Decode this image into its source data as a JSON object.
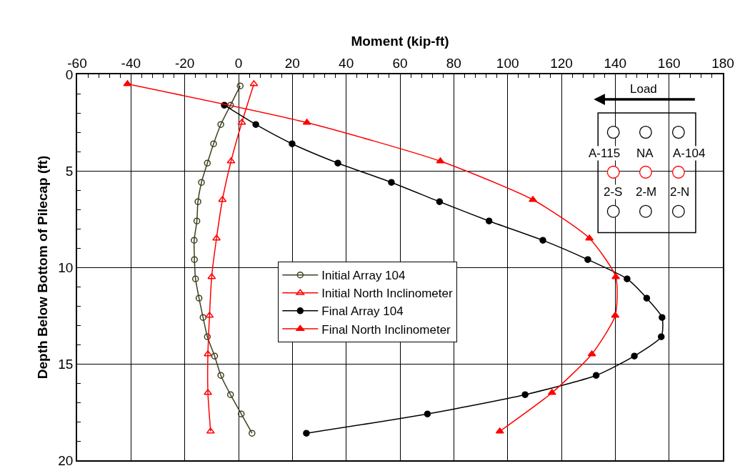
{
  "chart_data": {
    "type": "line",
    "xlabel": "Moment (kip-ft)",
    "ylabel": "Depth Below Bottom of Pilecap (ft)",
    "xlim": [
      -60,
      180
    ],
    "xticks": [
      -60,
      -40,
      -20,
      0,
      20,
      40,
      60,
      80,
      100,
      120,
      140,
      160,
      180
    ],
    "ylim": [
      20,
      0
    ],
    "yticks": [
      0,
      5,
      10,
      15,
      20
    ],
    "grid": true,
    "legend": "center",
    "series": [
      {
        "name": "Initial Array 104",
        "color": "#3f3f1f",
        "marker": "circle",
        "x": [
          0.6,
          -3.0,
          -6.6,
          -9.3,
          -11.6,
          -13.8,
          -15.1,
          -15.5,
          -16.5,
          -16.4,
          -16.0,
          -14.7,
          -13.2,
          -11.6,
          -8.9,
          -6.6,
          -3.0,
          1.0,
          5.0
        ],
        "values": [
          0.6,
          1.6,
          2.6,
          3.6,
          4.6,
          5.6,
          6.6,
          7.6,
          8.6,
          9.6,
          10.6,
          11.6,
          12.6,
          13.6,
          14.6,
          15.6,
          16.6,
          17.6,
          18.6
        ]
      },
      {
        "name": "Initial North Inclinometer",
        "color": "#ff0000",
        "marker": "triangle",
        "x": [
          5.7,
          1.2,
          -2.8,
          -6.0,
          -8.2,
          -10.0,
          -10.8,
          -11.4,
          -11.4,
          -10.4
        ],
        "values": [
          0.5,
          2.5,
          4.5,
          6.5,
          8.5,
          10.5,
          12.5,
          14.5,
          16.5,
          18.5
        ]
      },
      {
        "name": "Final Array 104",
        "color": "#000000",
        "marker": "circle",
        "x": [
          -5.3,
          6.4,
          19.9,
          36.9,
          56.8,
          74.7,
          93.1,
          113.1,
          129.8,
          144.4,
          151.7,
          157.4,
          157.1,
          147.1,
          132.9,
          106.5,
          70.2,
          25.2
        ],
        "values": [
          1.6,
          2.6,
          3.6,
          4.6,
          5.6,
          6.6,
          7.6,
          8.6,
          9.6,
          10.6,
          11.6,
          12.6,
          13.6,
          14.6,
          15.6,
          16.6,
          17.6,
          18.6
        ]
      },
      {
        "name": "Final North Inclinometer",
        "color": "#ff0000",
        "marker": "triangle",
        "x": [
          -41.3,
          25.4,
          75.0,
          109.4,
          130.4,
          140.2,
          140.0,
          131.3,
          116.5,
          97.1
        ],
        "values": [
          0.5,
          2.5,
          4.5,
          6.5,
          8.5,
          10.5,
          12.5,
          14.5,
          16.5,
          18.5
        ]
      }
    ],
    "annotations": [
      "Load",
      "A-115",
      "NA",
      "A-104",
      "2-S",
      "2-M",
      "2-N"
    ]
  }
}
